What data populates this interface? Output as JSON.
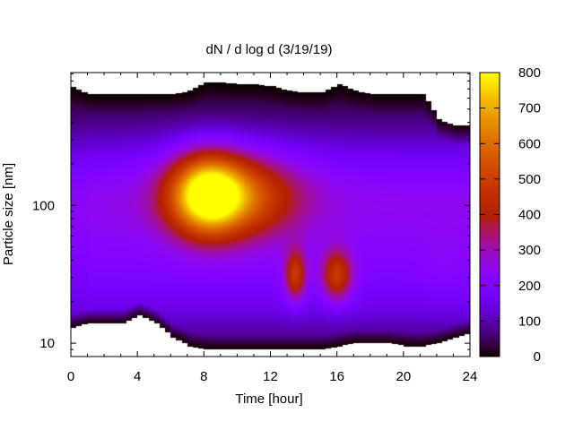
{
  "chart_data": {
    "type": "heatmap",
    "title": "dN / d log d (3/19/19)",
    "xlabel": "Time [hour]",
    "ylabel": "Particle size [nm]",
    "x_range": [
      0,
      24
    ],
    "x_ticks": [
      0,
      4,
      8,
      12,
      16,
      20,
      24
    ],
    "y_scale": "log",
    "y_range": [
      8,
      920
    ],
    "y_ticks": [
      {
        "value": 10,
        "label": "10"
      },
      {
        "value": 100,
        "label": "100"
      }
    ],
    "colorbar": {
      "range": [
        0,
        800
      ],
      "ticks": [
        0,
        100,
        200,
        300,
        400,
        500,
        600,
        700,
        800
      ],
      "palette": "gnuplot",
      "placement": "right"
    },
    "coverage": {
      "time": [
        0,
        1,
        2,
        3,
        4,
        5,
        6,
        7,
        8,
        9,
        10,
        11,
        12,
        13,
        14,
        15,
        16,
        17,
        18,
        19,
        20,
        21,
        22,
        23,
        24
      ],
      "upper_nm": [
        720,
        640,
        640,
        640,
        640,
        640,
        640,
        680,
        780,
        780,
        760,
        760,
        730,
        680,
        660,
        660,
        760,
        680,
        640,
        640,
        640,
        640,
        420,
        380,
        380
      ],
      "lower_nm": [
        13,
        14,
        14,
        14,
        16,
        14,
        11,
        9.5,
        9,
        9,
        9,
        9,
        9,
        9,
        9,
        9,
        9.5,
        10,
        10,
        10,
        9.5,
        9.5,
        10,
        11,
        12
      ]
    },
    "features": [
      {
        "time": 8.2,
        "size_nm": 120,
        "peak": 780,
        "dt": 1.5,
        "dlog": 0.2
      },
      {
        "time": 9.8,
        "size_nm": 118,
        "peak": 550,
        "dt": 2.6,
        "dlog": 0.21
      },
      {
        "time": 13.5,
        "size_nm": 31,
        "peak": 470,
        "dt": 0.45,
        "dlog": 0.13
      },
      {
        "time": 16.0,
        "size_nm": 31,
        "peak": 470,
        "dt": 0.65,
        "dlog": 0.13
      },
      {
        "time": 22.5,
        "size_nm": 38,
        "peak": 40,
        "dt": 1.0,
        "dlog": 0.15
      }
    ]
  }
}
